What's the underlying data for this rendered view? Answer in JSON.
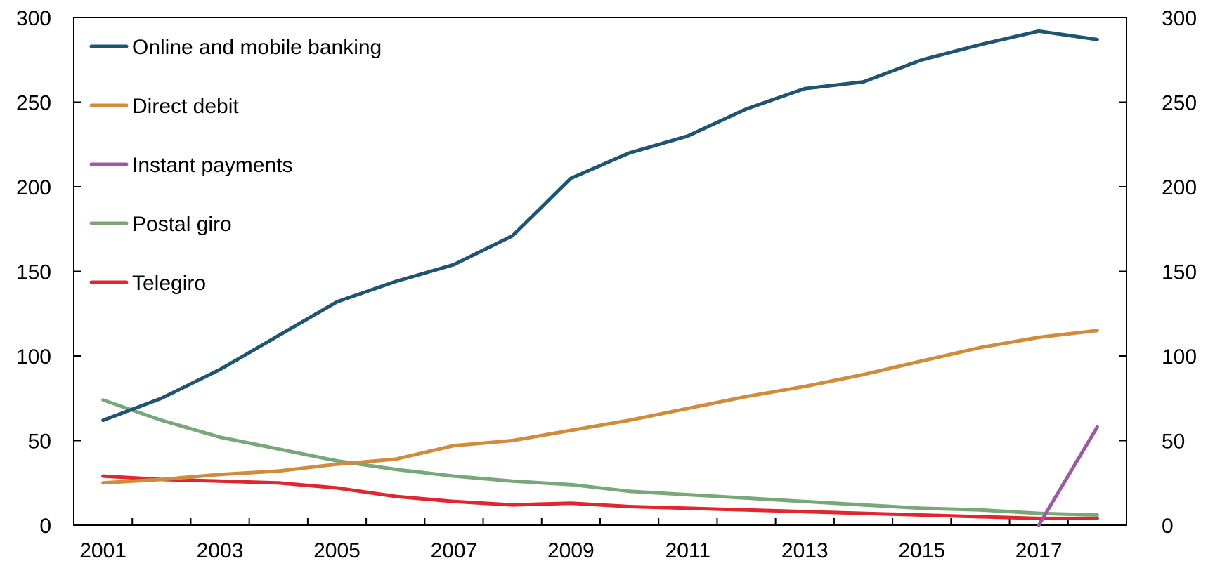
{
  "chart_data": {
    "type": "line",
    "title": "",
    "xlabel": "",
    "ylabel": "",
    "x": [
      2001,
      2002,
      2003,
      2004,
      2005,
      2006,
      2007,
      2008,
      2009,
      2010,
      2011,
      2012,
      2013,
      2014,
      2015,
      2016,
      2017,
      2018
    ],
    "x_tick_labels": [
      "2001",
      "2003",
      "2005",
      "2007",
      "2009",
      "2011",
      "2013",
      "2015",
      "2017"
    ],
    "xlim": [
      2000.5,
      2018.5
    ],
    "ylim": [
      0,
      300
    ],
    "y_ticks": [
      0,
      50,
      100,
      150,
      200,
      250,
      300
    ],
    "y_tick_labels": [
      "0",
      "50",
      "100",
      "150",
      "200",
      "250",
      "300"
    ],
    "secondary_y_axis": {
      "ylim": [
        0,
        300
      ],
      "y_tick_labels": [
        "0",
        "50",
        "100",
        "150",
        "200",
        "250",
        "300"
      ]
    },
    "grid": false,
    "legend_position": "top-left",
    "series": [
      {
        "name": "Online and mobile banking",
        "color": "#1f5473",
        "values": [
          62,
          75,
          92,
          112,
          132,
          144,
          154,
          171,
          205,
          220,
          230,
          246,
          258,
          262,
          275,
          284,
          292,
          287
        ]
      },
      {
        "name": "Direct debit",
        "color": "#d08b3b",
        "values": [
          25,
          27,
          30,
          32,
          36,
          39,
          47,
          50,
          56,
          62,
          69,
          76,
          82,
          89,
          97,
          105,
          111,
          115
        ]
      },
      {
        "name": "Instant payments",
        "color": "#9b5aa3",
        "values": [
          null,
          null,
          null,
          null,
          null,
          null,
          null,
          null,
          null,
          null,
          null,
          null,
          null,
          null,
          null,
          null,
          0,
          58
        ]
      },
      {
        "name": "Postal giro",
        "color": "#79a878",
        "values": [
          74,
          62,
          52,
          45,
          38,
          33,
          29,
          26,
          24,
          20,
          18,
          16,
          14,
          12,
          10,
          9,
          7,
          6
        ]
      },
      {
        "name": "Telegiro",
        "color": "#e0262f",
        "values": [
          29,
          27,
          26,
          25,
          22,
          17,
          14,
          12,
          13,
          11,
          10,
          9,
          8,
          7,
          6,
          5,
          4,
          4
        ]
      }
    ]
  }
}
